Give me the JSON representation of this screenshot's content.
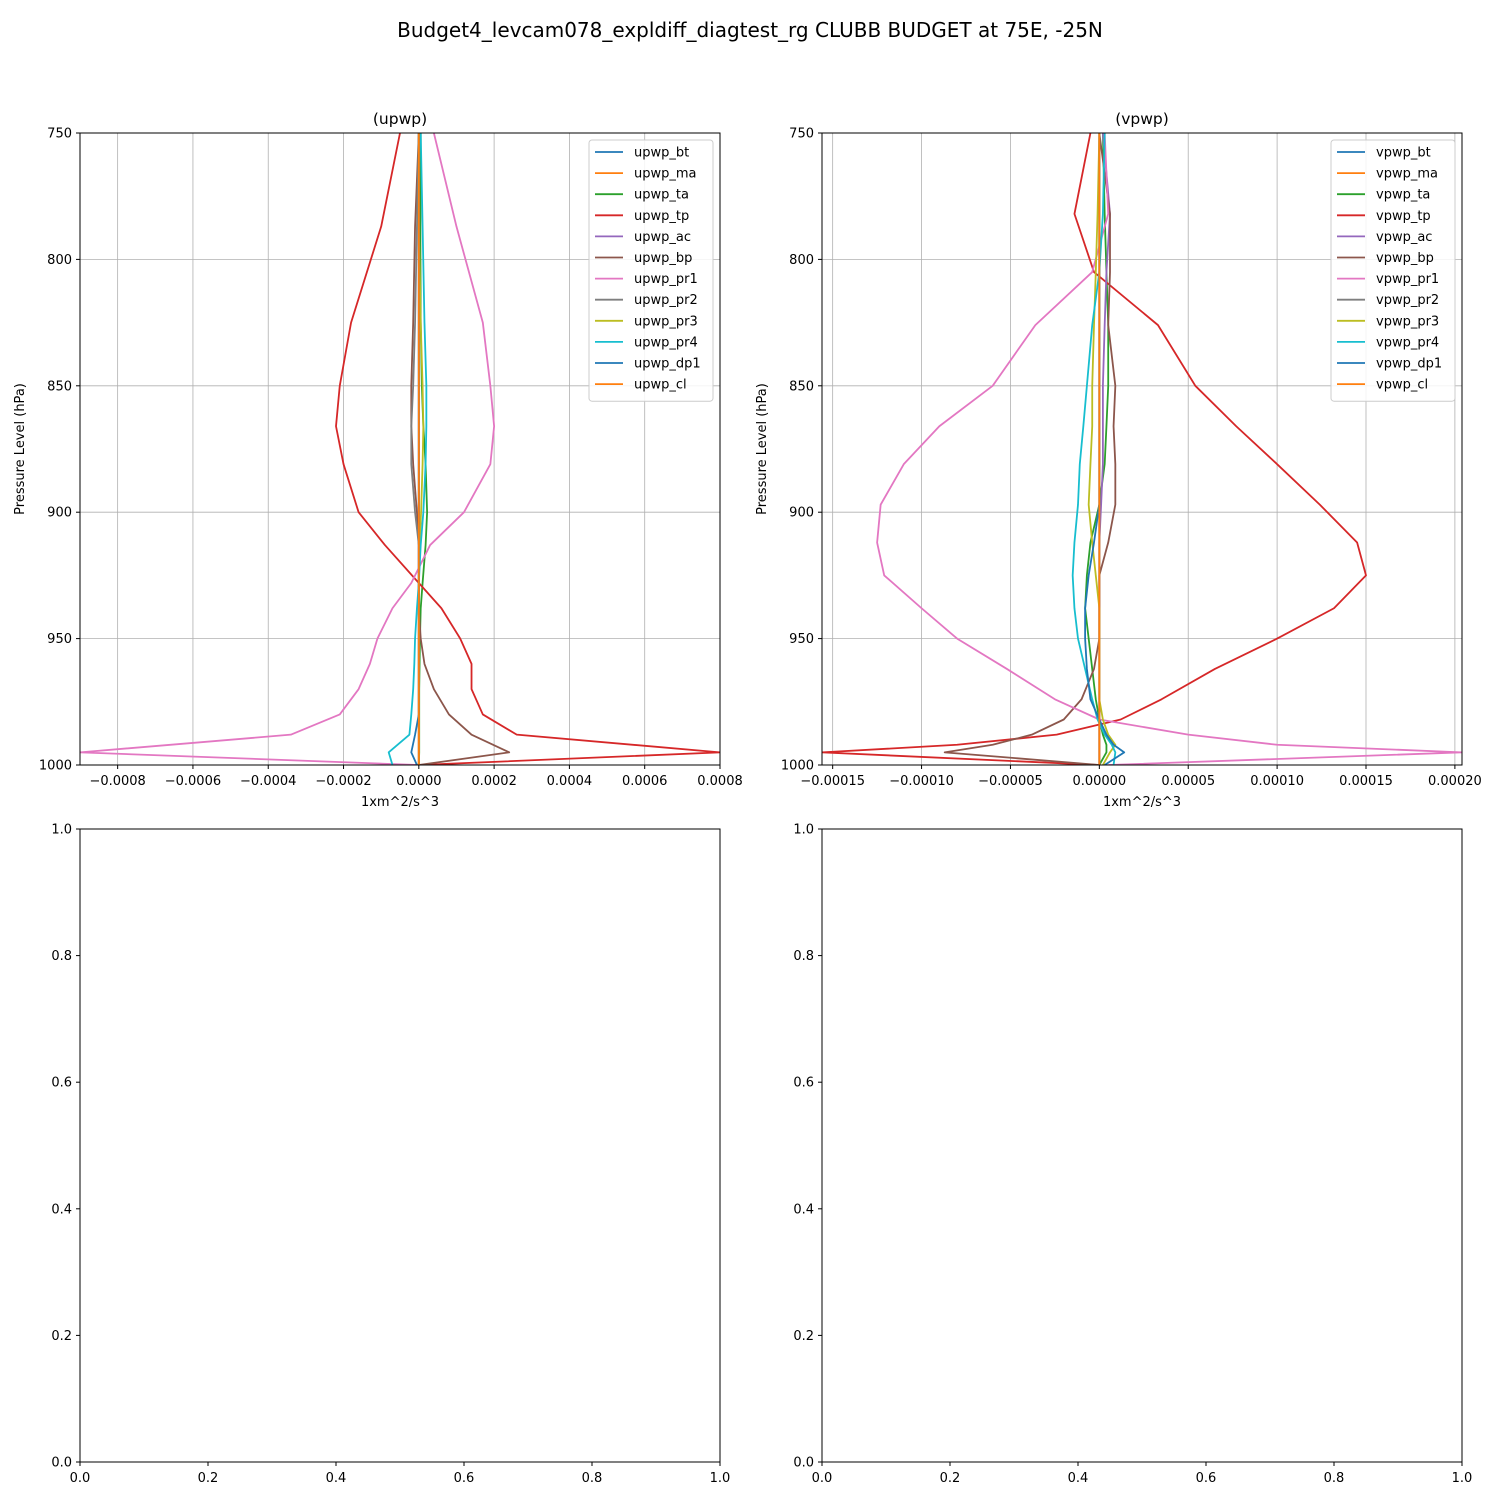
{
  "figure": {
    "title": "Budget4_levcam078_expldiff_diagtest_rg CLUBB BUDGET at 75E, -25N"
  },
  "colors": {
    "palette": [
      "#1f77b4",
      "#ff7f0e",
      "#2ca02c",
      "#d62728",
      "#9467bd",
      "#8c564b",
      "#e377c2",
      "#7f7f7f",
      "#bcbd22",
      "#17becf",
      "#1f77b4",
      "#ff7f0e"
    ],
    "grid": "#b0b0b0"
  },
  "chart_data": [
    {
      "type": "line",
      "title": "(upwp)",
      "xlabel": "1xm^2/s^3",
      "ylabel": "Pressure Level (hPa)",
      "xlim": [
        -0.0009,
        0.0008
      ],
      "ylim": [
        1000,
        750
      ],
      "y_inverted": true,
      "grid": true,
      "legend": "upper right",
      "xticks": [
        -0.0008,
        -0.0006,
        -0.0004,
        -0.0002,
        0.0,
        0.0002,
        0.0004,
        0.0006,
        0.0008
      ],
      "xtick_labels": [
        "−0.0008",
        "−0.0006",
        "−0.0004",
        "−0.0002",
        "0.0000",
        "0.0002",
        "0.0004",
        "0.0006",
        "0.0008"
      ],
      "yticks": [
        750,
        800,
        850,
        900,
        950,
        1000
      ],
      "ytick_labels": [
        "750",
        "800",
        "850",
        "900",
        "950",
        "1000"
      ],
      "levels": [
        750,
        787,
        825,
        850,
        866,
        881,
        900,
        913,
        928,
        938,
        950,
        960,
        970,
        980,
        988,
        995,
        1000
      ],
      "series": [
        {
          "name": "upwp_bt",
          "x": [
            0,
            0,
            0,
            0,
            0,
            0,
            0,
            0,
            0,
            0,
            0,
            0,
            0,
            0,
            0,
            0,
            0
          ]
        },
        {
          "name": "upwp_ma",
          "x": [
            0,
            0,
            0,
            0,
            0,
            0,
            0,
            0,
            0,
            0,
            0,
            0,
            0,
            0,
            0,
            0,
            0
          ]
        },
        {
          "name": "upwp_ta",
          "x": [
            5e-06,
            4e-06,
            5e-06,
            8e-06,
            1.2e-05,
            1.8e-05,
            2.2e-05,
            1.8e-05,
            1e-05,
            5e-06,
            3e-06,
            2e-06,
            1e-06,
            1e-06,
            1e-06,
            1e-06,
            0
          ]
        },
        {
          "name": "upwp_tp",
          "x": [
            -5e-05,
            -0.0001,
            -0.00018,
            -0.00021,
            -0.00022,
            -0.0002,
            -0.00016,
            -9e-05,
            0.0,
            6e-05,
            0.00011,
            0.00014,
            0.00014,
            0.00017,
            0.00026,
            0.0008,
            0.0
          ]
        },
        {
          "name": "upwp_ac",
          "x": [
            0,
            0,
            0,
            0,
            0,
            0,
            0,
            0,
            0,
            0,
            0,
            0,
            0,
            0,
            0,
            0,
            0
          ]
        },
        {
          "name": "upwp_bp",
          "x": [
            0.0,
            -1e-05,
            -1.5e-05,
            -2e-05,
            -2e-05,
            -1.5e-05,
            -5e-06,
            0.0,
            0.0,
            0.0,
            5e-06,
            1.5e-05,
            4e-05,
            8e-05,
            0.00014,
            0.00024,
            0.0
          ]
        },
        {
          "name": "upwp_pr1",
          "x": [
            4e-05,
            0.0001,
            0.00017,
            0.00019,
            0.0002,
            0.00019,
            0.00012,
            3e-05,
            -2e-05,
            -7e-05,
            -0.00011,
            -0.00013,
            -0.00016,
            -0.00021,
            -0.00034,
            -0.0009,
            0.0
          ]
        },
        {
          "name": "upwp_pr2",
          "x": [
            0.0,
            -5e-06,
            -1e-05,
            -1.5e-05,
            -2e-05,
            -2e-05,
            -1e-05,
            0.0,
            0.0,
            0.0,
            0.0,
            0.0,
            0.0,
            0.0,
            0.0,
            0.0,
            0.0
          ]
        },
        {
          "name": "upwp_pr3",
          "x": [
            0.0,
            0.0,
            5e-06,
            1e-05,
            1.2e-05,
            1e-05,
            6e-06,
            2e-06,
            0.0,
            0.0,
            0.0,
            0.0,
            0.0,
            0.0,
            0.0,
            0.0,
            0.0
          ]
        },
        {
          "name": "upwp_pr4",
          "x": [
            5e-06,
            1e-05,
            1.5e-05,
            2e-05,
            2e-05,
            1.8e-05,
            1.2e-05,
            5e-06,
            0.0,
            -5e-06,
            -1e-05,
            -1.2e-05,
            -1.5e-05,
            -2e-05,
            -2.5e-05,
            -8e-05,
            -7e-05
          ]
        },
        {
          "name": "upwp_dp1",
          "x": [
            0.0,
            0.0,
            0.0,
            0.0,
            0.0,
            0.0,
            0.0,
            0.0,
            0.0,
            0.0,
            0.0,
            0.0,
            0.0,
            0.0,
            -1e-05,
            -2e-05,
            -5e-06
          ]
        },
        {
          "name": "upwp_cl",
          "x": [
            0,
            0,
            0,
            0,
            0,
            0,
            0,
            0,
            0,
            0,
            0,
            0,
            0,
            0,
            0,
            0,
            0
          ]
        }
      ]
    },
    {
      "type": "line",
      "title": "(vpwp)",
      "xlabel": "1xm^2/s^3",
      "ylabel": "Pressure Level (hPa)",
      "xlim": [
        -0.000156,
        0.000204
      ],
      "ylim": [
        1000,
        750
      ],
      "y_inverted": true,
      "grid": true,
      "legend": "upper right",
      "xticks": [
        -0.00015,
        -0.0001,
        -5e-05,
        0.0,
        5e-05,
        0.0001,
        0.00015,
        0.0002
      ],
      "xtick_labels": [
        "−0.00015",
        "−0.00010",
        "−0.00005",
        "0.00000",
        "0.00005",
        "0.00010",
        "0.00015",
        "0.00020"
      ],
      "yticks": [
        750,
        800,
        850,
        900,
        950,
        1000
      ],
      "ytick_labels": [
        "750",
        "800",
        "850",
        "900",
        "950",
        "1000"
      ],
      "levels": [
        750,
        782,
        805,
        826,
        850,
        866,
        881,
        897,
        912,
        925,
        938,
        950,
        962,
        974,
        982,
        988,
        992,
        995,
        1000
      ],
      "series": [
        {
          "name": "vpwp_bt",
          "x": [
            0,
            0,
            0,
            0,
            0,
            0,
            0,
            0,
            0,
            0,
            0,
            0,
            0,
            0,
            0,
            0,
            0,
            0,
            0
          ]
        },
        {
          "name": "vpwp_ma",
          "x": [
            0,
            0,
            0,
            0,
            0,
            0,
            0,
            0,
            0,
            0,
            0,
            0,
            0,
            0,
            0,
            0,
            0,
            0,
            0
          ]
        },
        {
          "name": "vpwp_ta",
          "x": [
            2e-06,
            3e-06,
            4e-06,
            5e-06,
            5e-06,
            4e-06,
            3e-06,
            0.0,
            -5e-06,
            -7e-06,
            -8e-06,
            -6e-06,
            -4e-06,
            -2e-06,
            0.0,
            2e-06,
            4e-06,
            4e-06,
            0.0
          ]
        },
        {
          "name": "vpwp_tp",
          "x": [
            -5e-06,
            -1.4e-05,
            -3e-06,
            3.3e-05,
            5.4e-05,
            7.7e-05,
            0.0001,
            0.000124,
            0.000145,
            0.00015,
            0.000132,
            0.0001,
            6.5e-05,
            3.5e-05,
            1.2e-05,
            -2.4e-05,
            -8e-05,
            -0.000156,
            0.0
          ]
        },
        {
          "name": "vpwp_ac",
          "x": [
            2e-06,
            6e-06,
            4e-06,
            3e-06,
            2e-06,
            2e-06,
            2e-06,
            1e-06,
            0.0,
            0.0,
            0.0,
            0.0,
            0.0,
            0.0,
            0.0,
            0.0,
            0.0,
            0.0,
            0.0
          ]
        },
        {
          "name": "vpwp_bp",
          "x": [
            0.0,
            6e-06,
            6e-06,
            5e-06,
            9e-06,
            8e-06,
            9e-06,
            9e-06,
            5e-06,
            0.0,
            0.0,
            0.0,
            -3e-06,
            -1e-05,
            -2e-05,
            -3.8e-05,
            -6e-05,
            -8.7e-05,
            0.0
          ]
        },
        {
          "name": "vpwp_pr1",
          "x": [
            3e-06,
            5e-06,
            -4e-06,
            -3.6e-05,
            -6e-05,
            -9e-05,
            -0.00011,
            -0.000123,
            -0.000125,
            -0.000121,
            -0.0001,
            -8e-05,
            -5.2e-05,
            -2.5e-05,
            0.0,
            5e-05,
            0.0001,
            0.000204,
            5e-06
          ]
        },
        {
          "name": "vpwp_pr2",
          "x": [
            0.0,
            0.0,
            0.0,
            0.0,
            0.0,
            0.0,
            0.0,
            0.0,
            0.0,
            0.0,
            0.0,
            0.0,
            0.0,
            0.0,
            0.0,
            0.0,
            0.0,
            0.0,
            0.0
          ]
        },
        {
          "name": "vpwp_pr3",
          "x": [
            0.0,
            -1e-06,
            -2e-06,
            -3e-06,
            -4e-06,
            -4e-06,
            -5e-06,
            -6e-06,
            -4e-06,
            -2e-06,
            0.0,
            0.0,
            0.0,
            0.0,
            2e-06,
            5e-06,
            9e-06,
            6e-06,
            2e-06
          ]
        },
        {
          "name": "vpwp_pr4",
          "x": [
            3e-06,
            2e-06,
            0.0,
            -4e-06,
            -7e-06,
            -9e-06,
            -1.1e-05,
            -1.2e-05,
            -1.4e-05,
            -1.5e-05,
            -1.4e-05,
            -1.2e-05,
            -8e-06,
            -4e-06,
            -1e-06,
            3e-06,
            7e-06,
            9e-06,
            8e-06
          ]
        },
        {
          "name": "vpwp_dp1",
          "x": [
            0.0,
            0.0,
            0.0,
            0.0,
            0.0,
            0.0,
            0.0,
            0.0,
            -3e-06,
            -6e-06,
            -8e-06,
            -8e-06,
            -7e-06,
            -5e-06,
            0.0,
            4e-06,
            8e-06,
            1.4e-05,
            3e-06
          ]
        },
        {
          "name": "vpwp_cl",
          "x": [
            0,
            0,
            0,
            0,
            0,
            0,
            0,
            0,
            0,
            0,
            0,
            0,
            0,
            0,
            0,
            0,
            0,
            0,
            0
          ]
        }
      ]
    },
    {
      "type": "line",
      "title": "",
      "empty": true,
      "xlim": [
        0,
        1
      ],
      "ylim": [
        0,
        1
      ],
      "xticks": [
        0.0,
        0.2,
        0.4,
        0.6,
        0.8,
        1.0
      ],
      "xtick_labels": [
        "0.0",
        "0.2",
        "0.4",
        "0.6",
        "0.8",
        "1.0"
      ],
      "yticks": [
        0.0,
        0.2,
        0.4,
        0.6,
        0.8,
        1.0
      ],
      "ytick_labels": [
        "0.0",
        "0.2",
        "0.4",
        "0.6",
        "0.8",
        "1.0"
      ],
      "series": []
    },
    {
      "type": "line",
      "title": "",
      "empty": true,
      "xlim": [
        0,
        1
      ],
      "ylim": [
        0,
        1
      ],
      "xticks": [
        0.0,
        0.2,
        0.4,
        0.6,
        0.8,
        1.0
      ],
      "xtick_labels": [
        "0.0",
        "0.2",
        "0.4",
        "0.6",
        "0.8",
        "1.0"
      ],
      "yticks": [
        0.0,
        0.2,
        0.4,
        0.6,
        0.8,
        1.0
      ],
      "ytick_labels": [
        "0.0",
        "0.2",
        "0.4",
        "0.6",
        "0.8",
        "1.0"
      ],
      "series": []
    }
  ]
}
